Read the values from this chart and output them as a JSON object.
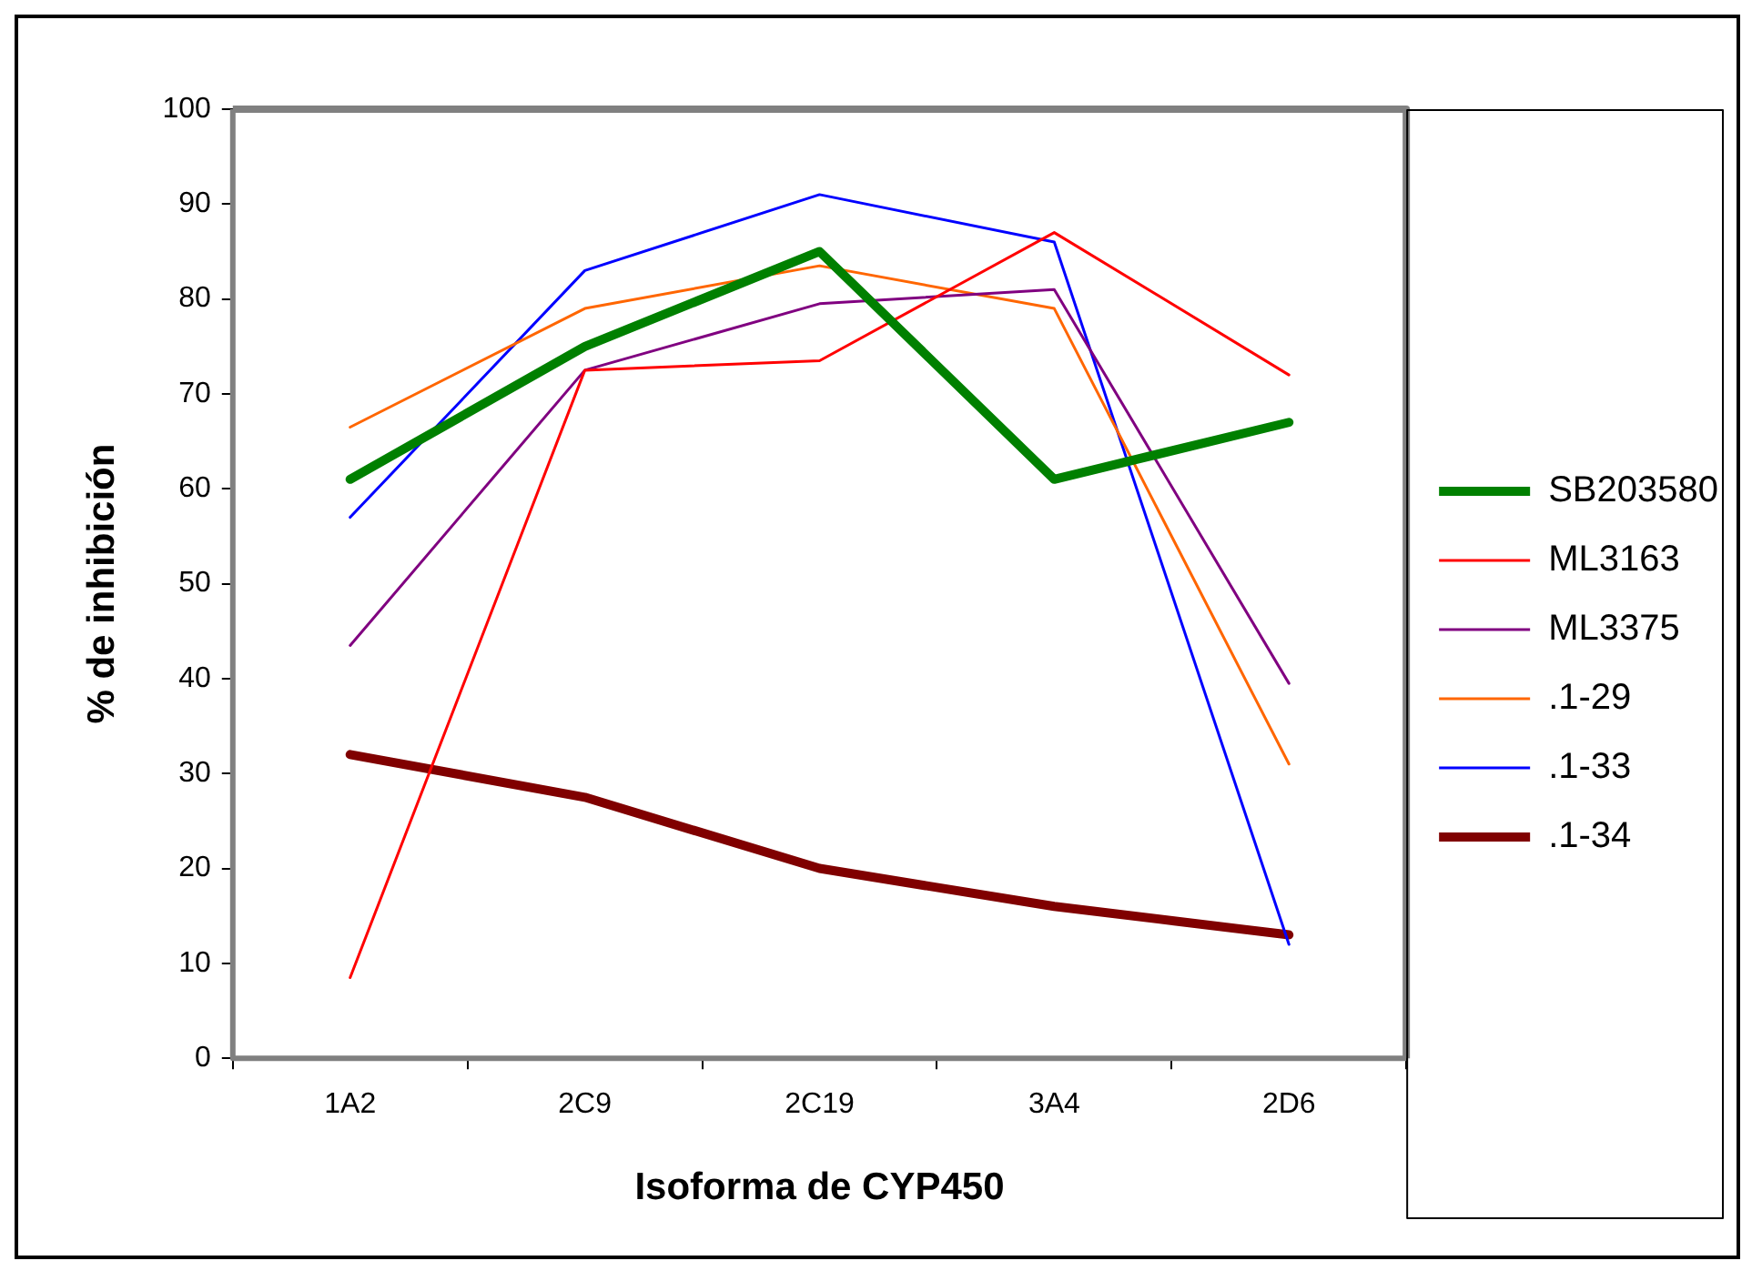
{
  "chart_data": {
    "type": "line",
    "xlabel": "Isoforma de CYP450",
    "ylabel": "% de inhibición",
    "categories": [
      "1A2",
      "2C9",
      "2C19",
      "3A4",
      "2D6"
    ],
    "series": [
      {
        "name": "SB203580",
        "color": "#008000",
        "values": [
          61,
          75,
          85,
          61,
          67
        ]
      },
      {
        "name": "ML3163",
        "color": "#ff0000",
        "values": [
          8.5,
          72.5,
          73.5,
          87,
          72
        ]
      },
      {
        "name": "ML3375",
        "color": "#800080",
        "values": [
          43.5,
          72.5,
          79.5,
          81,
          39.5
        ]
      },
      {
        "name": ".1-29",
        "color": "#ff6600",
        "values": [
          66.5,
          79,
          83.5,
          79,
          31
        ]
      },
      {
        "name": ".1-33",
        "color": "#0000ff",
        "values": [
          57,
          83,
          91,
          86,
          12
        ]
      },
      {
        "name": ".1-34",
        "color": "#800000",
        "values": [
          32,
          27.5,
          20,
          16,
          13
        ]
      }
    ],
    "ylim": [
      0,
      100
    ],
    "yticks": [
      0,
      10,
      20,
      30,
      40,
      50,
      60,
      70,
      80,
      90,
      100
    ],
    "grid": false,
    "legend": "right",
    "marker": "none",
    "line_style": "solid"
  }
}
